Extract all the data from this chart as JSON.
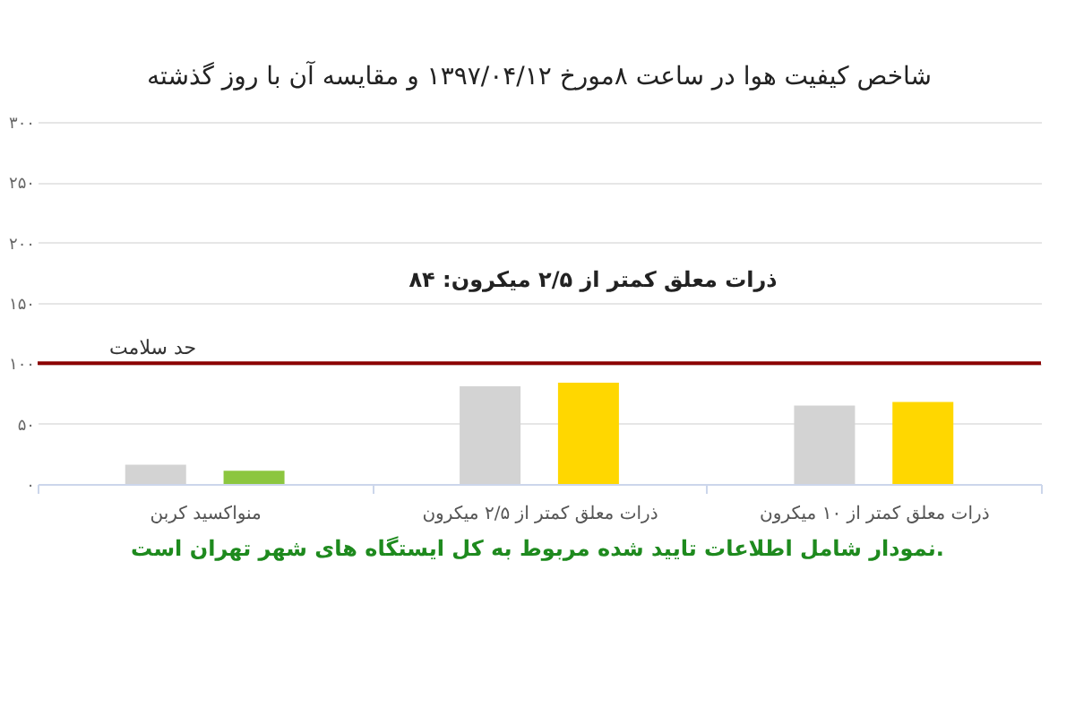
{
  "chart_data": {
    "type": "bar",
    "title": "شاخص کیفیت هوا در ساعت ۸مورخ ۱۳۹۷/۰۴/۱۲ و مقایسه آن با روز گذشته",
    "categories": [
      "منواکسید کربن",
      "ذرات معلق کمتر از ۲/۵ میکرون",
      "ذرات معلق کمتر از ۱۰ میکرون"
    ],
    "series": [
      {
        "color": "#d3d3d3",
        "values": [
          16,
          81,
          65
        ]
      },
      {
        "colors": [
          "#8cc63f",
          "#ffd700",
          "#ffd700"
        ],
        "values": [
          11,
          84,
          68
        ]
      }
    ],
    "ylim": [
      0,
      300
    ],
    "yticks": [
      {
        "value": 0,
        "label": "۰"
      },
      {
        "value": 50,
        "label": "۵۰"
      },
      {
        "value": 100,
        "label": "۱۰۰"
      },
      {
        "value": 150,
        "label": "۱۵۰"
      },
      {
        "value": 200,
        "label": "۲۰۰"
      },
      {
        "value": 250,
        "label": "۲۵۰"
      },
      {
        "value": 300,
        "label": "۳۰۰"
      }
    ],
    "grid": "y",
    "ref_lines": [
      {
        "axis": "y",
        "value": 100,
        "label": "حد سلامت",
        "color": "#8b0000"
      }
    ],
    "annotations": [
      "ذرات معلق کمتر از ۲/۵ میکرون: ۸۴",
      "نمودار شامل اطلاعات تایید شده مربوط به کل ایستگاه های شهر تهران است."
    ]
  }
}
